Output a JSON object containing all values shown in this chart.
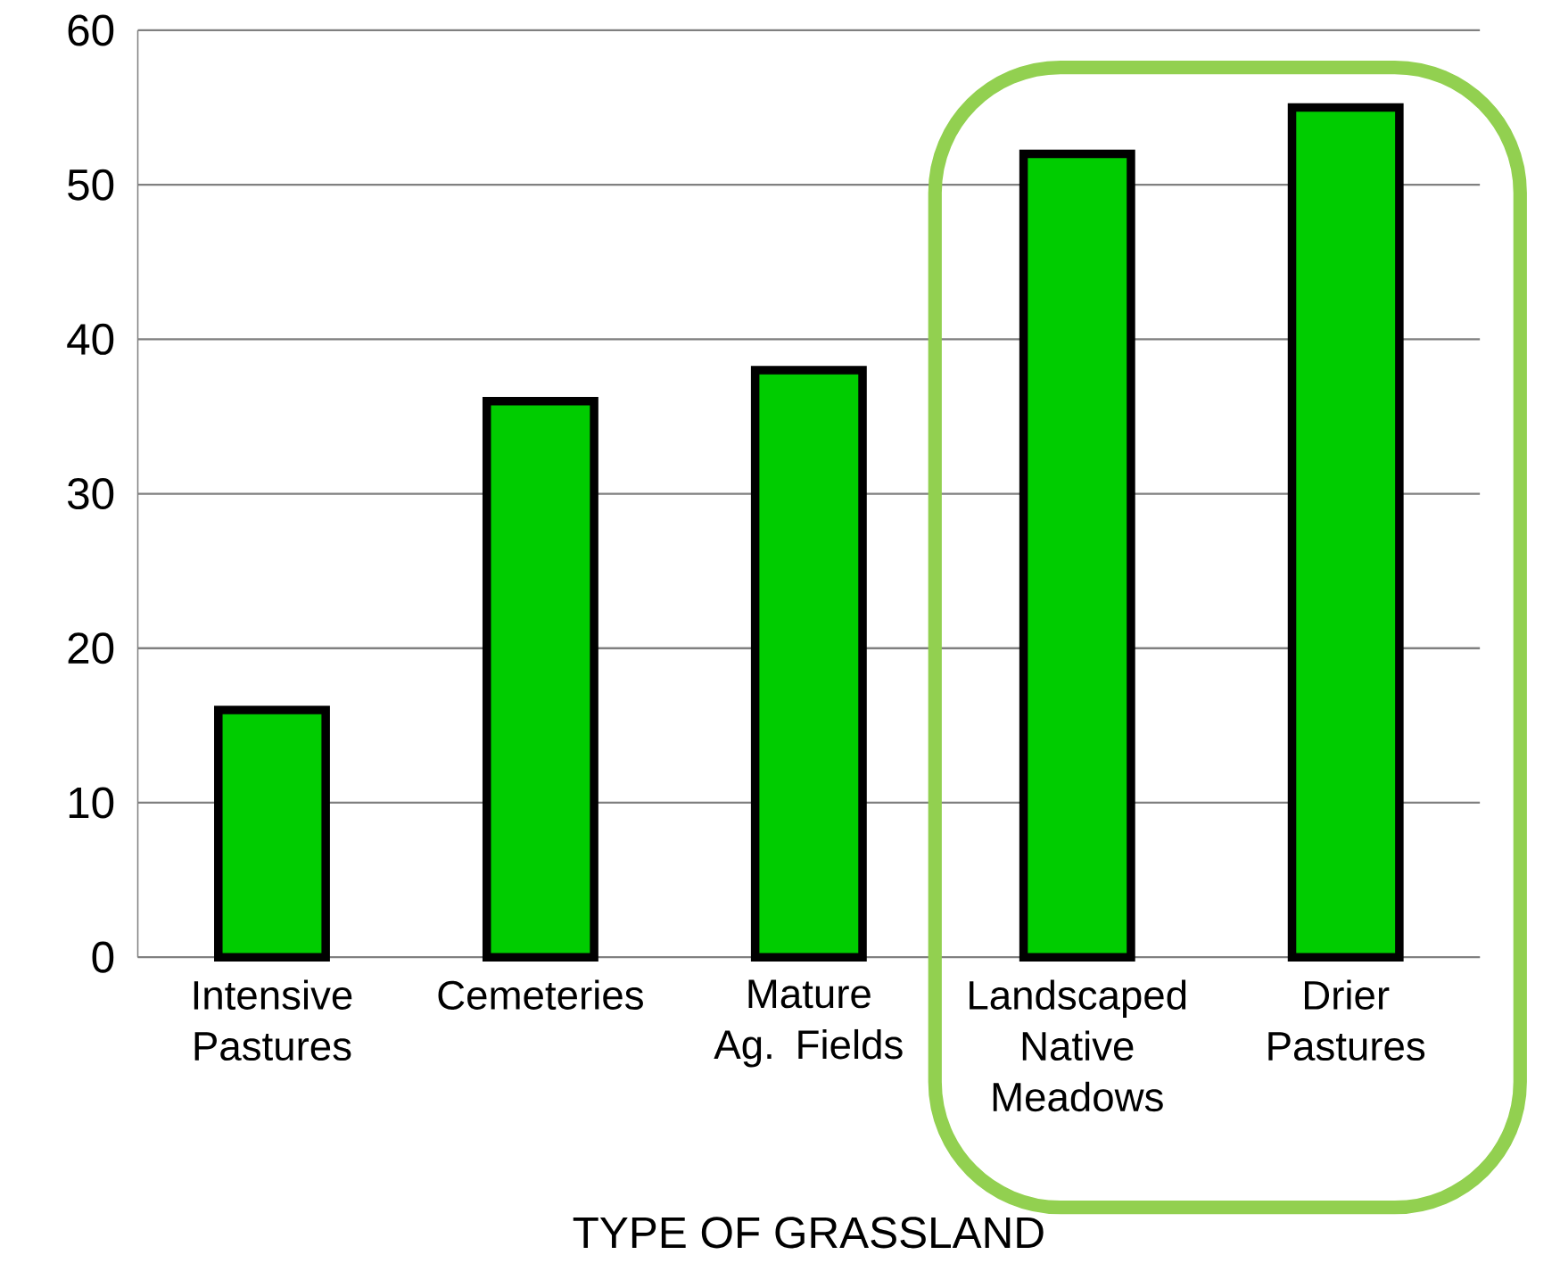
{
  "chart_data": {
    "type": "bar",
    "xlabel": "TYPE OF GRASSLAND",
    "categories": [
      "Intensive Pastures",
      "Cemeteries",
      "Mature Ag. Fields",
      "Landscaped Native Meadows",
      "Drier Pastures"
    ],
    "values": [
      16,
      36,
      38,
      52,
      55
    ],
    "color": "#00cc00",
    "ylim": [
      0,
      60
    ],
    "yticks": [
      0,
      10,
      20,
      30,
      40,
      50,
      60
    ],
    "grid": "y"
  }
}
